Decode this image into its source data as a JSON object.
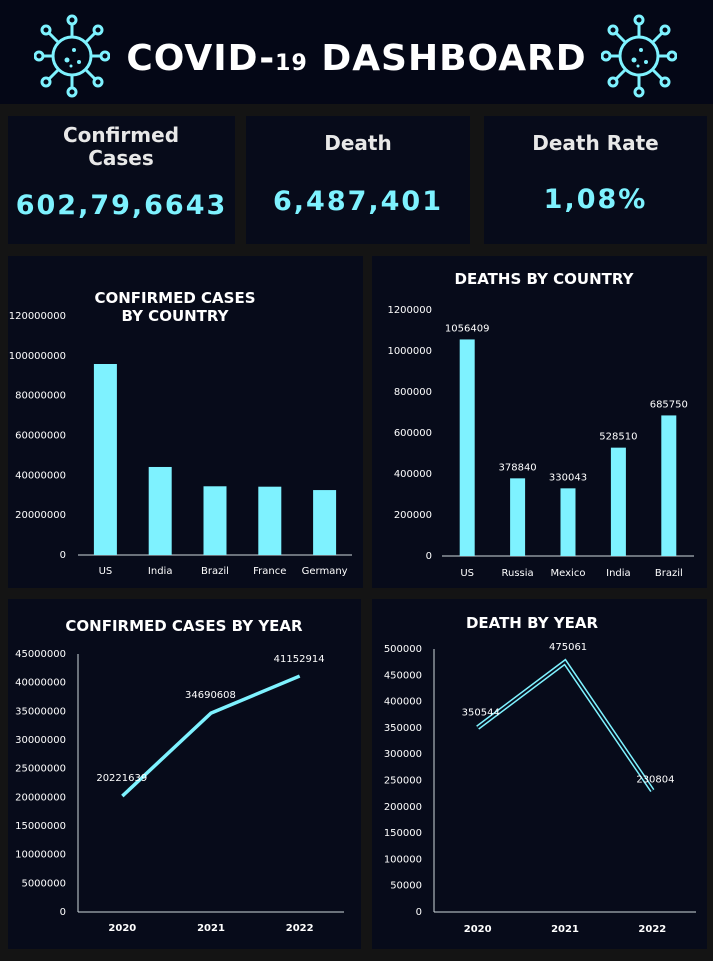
{
  "header": {
    "title_part1": "COVID-",
    "title_part2": "19",
    "title_part3": " DASHBOARD",
    "icon": "virus-icon"
  },
  "kpis": {
    "confirmed": {
      "label": "Confirmed Cases",
      "value": "602,79,6643"
    },
    "death": {
      "label": "Death",
      "value": "6,487,401"
    },
    "death_rate": {
      "label": "Death Rate",
      "value": "1,08%"
    }
  },
  "colors": {
    "accent": "#7ef2ff",
    "panel": "#070b1a",
    "background": "#141414"
  },
  "chart_data": [
    {
      "id": "confirmed_by_country",
      "type": "bar",
      "title_lines": [
        "CONFIRMED CASES",
        "BY COUNTRY"
      ],
      "categories": [
        "US",
        "India",
        "Brazil",
        "France",
        "Germany"
      ],
      "values": [
        95900000,
        44200000,
        34500000,
        34300000,
        32600000
      ],
      "yticks": [
        "120000000",
        "100000000",
        "80000000",
        "60000000",
        "40000000",
        "20000000",
        "0"
      ],
      "ylim": [
        0,
        120000000
      ],
      "show_labels": false
    },
    {
      "id": "deaths_by_country",
      "type": "bar",
      "title_lines": [
        "DEATHS BY COUNTRY"
      ],
      "categories": [
        "US",
        "Russia",
        "Mexico",
        "India",
        "Brazil"
      ],
      "values": [
        1056409,
        378840,
        330043,
        528510,
        685750
      ],
      "labels": [
        "1056409",
        "378840",
        "330043",
        "528510",
        "685750"
      ],
      "yticks": [
        "1200000",
        "1000000",
        "800000",
        "600000",
        "400000",
        "200000",
        "0"
      ],
      "ylim": [
        0,
        1200000
      ],
      "show_labels": true
    },
    {
      "id": "confirmed_by_year",
      "type": "line",
      "title_lines": [
        "CONFIRMED CASES BY YEAR"
      ],
      "categories": [
        "2020",
        "2021",
        "2022"
      ],
      "values": [
        20221639,
        34690608,
        41152914
      ],
      "labels": [
        "20221639",
        "34690608",
        "41152914"
      ],
      "yticks": [
        "45000000",
        "40000000",
        "35000000",
        "30000000",
        "25000000",
        "20000000",
        "15000000",
        "10000000",
        "5000000",
        "0"
      ],
      "ylim": [
        0,
        45000000
      ]
    },
    {
      "id": "death_by_year",
      "type": "line",
      "title_lines": [
        "DEATH BY YEAR"
      ],
      "categories": [
        "2020",
        "2021",
        "2022"
      ],
      "values": [
        350544,
        475061,
        230804
      ],
      "labels": [
        "350544",
        "475061",
        "230804"
      ],
      "yticks": [
        "500000",
        "450000",
        "400000",
        "350000",
        "300000",
        "250000",
        "200000",
        "150000",
        "100000",
        "50000",
        "0"
      ],
      "ylim": [
        0,
        500000
      ]
    }
  ]
}
